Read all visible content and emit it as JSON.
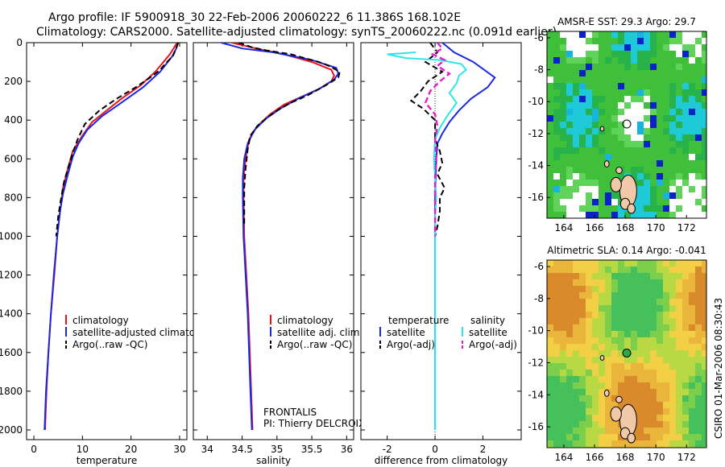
{
  "title": {
    "line1": "Argo profile: IF 5900918_30 22-Feb-2006 20060222_6 11.386S 168.102E",
    "line2": "Climatology: CARS2000. Satellite-adjusted climatology: synTS_20060222.nc (0.091d earlier)"
  },
  "side_text": "CSIRO 01-Mar-2006 08:30:43",
  "colors": {
    "clim": "#e8141b",
    "sat": "#1c28e0",
    "argo": "#000000",
    "sal_sat": "#2ee6e6",
    "sal_argo": "#e020c8"
  },
  "chart_data": [
    {
      "type": "line",
      "xlabel": "temperature",
      "ylim": [
        2050,
        0
      ],
      "xlim": [
        -1.5,
        31.5
      ],
      "xticks": [
        0,
        10,
        20,
        30
      ],
      "yticks": [
        0,
        200,
        400,
        600,
        800,
        1000,
        1200,
        1400,
        1600,
        1800,
        2000
      ],
      "legend": [
        "climatology",
        "satellite-adjusted climatology",
        "Argo(..raw -QC)"
      ],
      "series": [
        {
          "name": "climatology",
          "style": "clim",
          "points": [
            [
              29.5,
              0
            ],
            [
              29,
              20
            ],
            [
              28,
              60
            ],
            [
              25,
              150
            ],
            [
              22,
              220
            ],
            [
              18,
              290
            ],
            [
              15,
              350
            ],
            [
              12,
              410
            ],
            [
              10,
              480
            ],
            [
              8,
              560
            ],
            [
              7,
              650
            ],
            [
              6,
              750
            ],
            [
              5.5,
              850
            ],
            [
              4.8,
              1000
            ],
            [
              4.2,
              1200
            ],
            [
              3.5,
              1400
            ],
            [
              3,
              1600
            ],
            [
              2.6,
              1800
            ],
            [
              2.3,
              2000
            ]
          ]
        },
        {
          "name": "satellite-adjusted climatology",
          "style": "sat",
          "points": [
            [
              29.7,
              0
            ],
            [
              29.3,
              30
            ],
            [
              28.5,
              70
            ],
            [
              26,
              150
            ],
            [
              22.5,
              230
            ],
            [
              18,
              310
            ],
            [
              14,
              380
            ],
            [
              11,
              450
            ],
            [
              9.2,
              520
            ],
            [
              8,
              590
            ],
            [
              7,
              680
            ],
            [
              6,
              780
            ],
            [
              5.4,
              870
            ],
            [
              4.8,
              1000
            ],
            [
              4.1,
              1200
            ],
            [
              3.5,
              1400
            ],
            [
              3,
              1600
            ],
            [
              2.5,
              1800
            ],
            [
              2.2,
              2000
            ]
          ]
        },
        {
          "name": "Argo(..raw -QC)",
          "style": "argo",
          "points": [
            [
              29.7,
              0
            ],
            [
              29.3,
              30
            ],
            [
              28.6,
              70
            ],
            [
              27,
              110
            ],
            [
              26,
              140
            ],
            [
              24.5,
              170
            ],
            [
              21,
              230
            ],
            [
              17,
              290
            ],
            [
              13.5,
              350
            ],
            [
              10.5,
              420
            ],
            [
              9,
              500
            ],
            [
              8,
              570
            ],
            [
              7,
              650
            ],
            [
              6.2,
              720
            ],
            [
              5.5,
              820
            ],
            [
              5,
              900
            ],
            [
              4.6,
              1000
            ]
          ]
        }
      ]
    },
    {
      "type": "line",
      "xlabel": "salinity",
      "ylim": [
        2050,
        0
      ],
      "xlim": [
        33.8,
        36.1
      ],
      "xticks": [
        34,
        34.5,
        35,
        35.5,
        36
      ],
      "legend": [
        "climatology",
        "satellite adj. clim.",
        "Argo(..raw -QC)"
      ],
      "annotations": [
        "FRONTALIS",
        "PI: Thierry DELCROIX"
      ],
      "series": [
        {
          "name": "climatology",
          "style": "clim",
          "points": [
            [
              34.35,
              0
            ],
            [
              34.7,
              30
            ],
            [
              35.1,
              60
            ],
            [
              35.5,
              100
            ],
            [
              35.78,
              140
            ],
            [
              35.82,
              170
            ],
            [
              35.78,
              200
            ],
            [
              35.6,
              240
            ],
            [
              35.35,
              280
            ],
            [
              35.1,
              320
            ],
            [
              34.9,
              370
            ],
            [
              34.72,
              430
            ],
            [
              34.6,
              500
            ],
            [
              34.55,
              600
            ],
            [
              34.52,
              700
            ],
            [
              34.52,
              800
            ],
            [
              34.53,
              1000
            ],
            [
              34.56,
              1200
            ],
            [
              34.59,
              1400
            ],
            [
              34.61,
              1600
            ],
            [
              34.63,
              1800
            ],
            [
              34.65,
              2000
            ]
          ]
        },
        {
          "name": "satellite adj. clim.",
          "style": "sat",
          "points": [
            [
              34.2,
              0
            ],
            [
              34.5,
              30
            ],
            [
              34.95,
              50
            ],
            [
              35.5,
              90
            ],
            [
              35.85,
              130
            ],
            [
              35.88,
              160
            ],
            [
              35.82,
              190
            ],
            [
              35.6,
              240
            ],
            [
              35.3,
              290
            ],
            [
              35.05,
              340
            ],
            [
              34.85,
              390
            ],
            [
              34.68,
              450
            ],
            [
              34.58,
              520
            ],
            [
              34.53,
              600
            ],
            [
              34.51,
              700
            ],
            [
              34.51,
              800
            ],
            [
              34.52,
              1000
            ],
            [
              34.55,
              1200
            ],
            [
              34.58,
              1400
            ],
            [
              34.6,
              1600
            ],
            [
              34.62,
              1800
            ],
            [
              34.64,
              2000
            ]
          ]
        },
        {
          "name": "Argo(..raw -QC)",
          "style": "argo",
          "points": [
            [
              34.45,
              0
            ],
            [
              34.65,
              25
            ],
            [
              34.85,
              40
            ],
            [
              35.2,
              60
            ],
            [
              35.4,
              80
            ],
            [
              35.6,
              100
            ],
            [
              35.75,
              120
            ],
            [
              35.9,
              150
            ],
            [
              35.88,
              180
            ],
            [
              35.7,
              220
            ],
            [
              35.45,
              270
            ],
            [
              35.2,
              310
            ],
            [
              35.0,
              350
            ],
            [
              34.85,
              390
            ],
            [
              34.72,
              430
            ],
            [
              34.62,
              480
            ],
            [
              34.58,
              550
            ],
            [
              34.55,
              650
            ],
            [
              34.53,
              750
            ],
            [
              34.53,
              850
            ],
            [
              34.53,
              950
            ]
          ]
        }
      ]
    },
    {
      "type": "line",
      "xlabel": "difference from climatology",
      "ylim": [
        2050,
        0
      ],
      "xlim": [
        -3.1,
        3.6
      ],
      "xticks": [
        -2,
        0,
        2
      ],
      "legend": [
        "temperature",
        "satellite",
        "Argo(-adj)",
        "salinity",
        "satellite",
        "Argo(-adj)"
      ],
      "series": [
        {
          "name": "temperature satellite",
          "style": "sat",
          "points": [
            [
              0.3,
              0
            ],
            [
              0.8,
              50
            ],
            [
              1.6,
              100
            ],
            [
              2.5,
              180
            ],
            [
              2.2,
              230
            ],
            [
              1.5,
              290
            ],
            [
              1.0,
              350
            ],
            [
              0.6,
              410
            ],
            [
              0.3,
              470
            ],
            [
              0.1,
              520
            ],
            [
              0.05,
              600
            ],
            [
              0.0,
              800
            ],
            [
              0.0,
              1000
            ],
            [
              0.0,
              1200
            ],
            [
              0.0,
              1500
            ],
            [
              0.0,
              2000
            ]
          ]
        },
        {
          "name": "temperature Argo(-adj)",
          "style": "argo",
          "points": [
            [
              -0.2,
              0
            ],
            [
              0.1,
              50
            ],
            [
              -0.4,
              100
            ],
            [
              0.3,
              150
            ],
            [
              -0.3,
              200
            ],
            [
              -0.6,
              250
            ],
            [
              -1.0,
              300
            ],
            [
              -0.5,
              340
            ],
            [
              0,
              400
            ],
            [
              0,
              500
            ],
            [
              0.2,
              560
            ],
            [
              0.3,
              620
            ],
            [
              0.1,
              680
            ],
            [
              0.4,
              750
            ],
            [
              0.2,
              800
            ],
            [
              0.2,
              870
            ],
            [
              0.1,
              950
            ],
            [
              0,
              1000
            ]
          ]
        },
        {
          "name": "salinity satellite",
          "style": "sal_sat",
          "points": [
            [
              -0.8,
              50
            ],
            [
              -2.0,
              60
            ],
            [
              -1.2,
              80
            ],
            [
              0.2,
              90
            ],
            [
              1.1,
              110
            ],
            [
              1.3,
              140
            ],
            [
              1.0,
              170
            ],
            [
              0.9,
              210
            ],
            [
              0.6,
              260
            ],
            [
              0.9,
              310
            ],
            [
              0.5,
              380
            ],
            [
              0.2,
              440
            ],
            [
              0.0,
              500
            ],
            [
              -0.05,
              600
            ],
            [
              0.0,
              700
            ],
            [
              0.05,
              800
            ],
            [
              0.0,
              900
            ],
            [
              0.0,
              1000
            ],
            [
              0.0,
              1100
            ],
            [
              0.0,
              1300
            ],
            [
              0.0,
              1500
            ],
            [
              0.0,
              1800
            ],
            [
              0.0,
              2000
            ]
          ]
        },
        {
          "name": "salinity Argo(-adj)",
          "style": "sal_argo",
          "points": [
            [
              0.1,
              0
            ],
            [
              0.3,
              30
            ],
            [
              -0.1,
              60
            ],
            [
              0.4,
              90
            ],
            [
              0.1,
              120
            ],
            [
              0.6,
              160
            ],
            [
              0.2,
              200
            ],
            [
              -0.2,
              250
            ],
            [
              -0.4,
              310
            ],
            [
              0,
              370
            ],
            [
              0.1,
              430
            ],
            [
              0,
              500
            ],
            [
              0.05,
              600
            ],
            [
              0,
              700
            ],
            [
              0,
              800
            ],
            [
              0,
              900
            ],
            [
              0,
              1000
            ]
          ]
        }
      ]
    }
  ],
  "maps": [
    {
      "title": "AMSR-E SST: 29.3 Argo: 29.7",
      "xticks": [
        164,
        166,
        168,
        170,
        172
      ],
      "yticks": [
        -6,
        -8,
        -10,
        -12,
        -14,
        -16
      ],
      "xlim": [
        162.9,
        173.3
      ],
      "ylim": [
        -17.3,
        -5.6
      ],
      "marker": {
        "lon": 168.1,
        "lat": -11.4
      }
    },
    {
      "title": "Altimetric SLA: 0.14 Argo: -0.041",
      "xticks": [
        164,
        166,
        168,
        170,
        172
      ],
      "yticks": [
        -6,
        -8,
        -10,
        -12,
        -14,
        -16
      ],
      "xlim": [
        162.9,
        173.3
      ],
      "ylim": [
        -17.3,
        -5.6
      ],
      "marker": {
        "lon": 168.1,
        "lat": -11.4
      }
    }
  ]
}
